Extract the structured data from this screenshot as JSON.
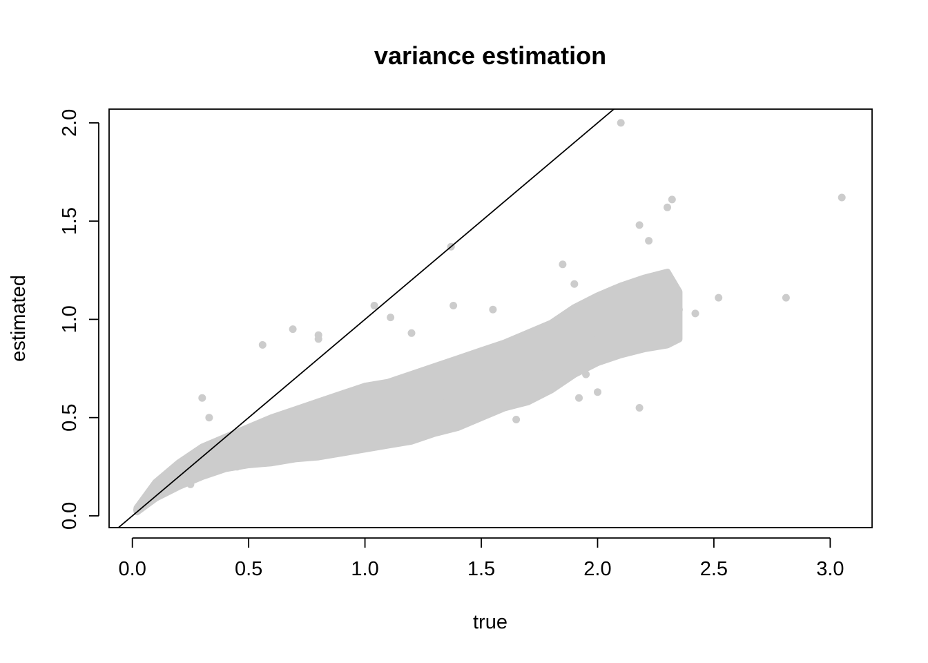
{
  "chart_data": {
    "type": "scatter",
    "title": "variance estimation",
    "xlabel": "true",
    "ylabel": "estimated",
    "xlim": [
      -0.1,
      3.18
    ],
    "ylim": [
      -0.06,
      2.07
    ],
    "xticks": [
      0.0,
      0.5,
      1.0,
      1.5,
      2.0,
      2.5,
      3.0
    ],
    "xtick_labels": [
      "0.0",
      "0.5",
      "1.0",
      "1.5",
      "2.0",
      "2.5",
      "3.0"
    ],
    "yticks": [
      0.0,
      0.5,
      1.0,
      1.5,
      2.0
    ],
    "ytick_labels": [
      "0.0",
      "0.5",
      "1.0",
      "1.5",
      "2.0"
    ],
    "grid": false,
    "reference_line": {
      "intercept": 0,
      "slope": 1,
      "color": "#000000"
    },
    "point_color": "#cccccc",
    "points": {
      "x": [
        0.02,
        0.05,
        0.08,
        0.1,
        0.12,
        0.15,
        0.18,
        0.2,
        0.22,
        0.25,
        0.28,
        0.3,
        0.33,
        0.36,
        0.4,
        0.43,
        0.46,
        0.5,
        0.54,
        0.58,
        0.62,
        0.66,
        0.7,
        0.75,
        0.8,
        0.85,
        0.9,
        0.95,
        1.0,
        1.05,
        1.1,
        1.15,
        1.2,
        1.25,
        1.3,
        1.35,
        1.4,
        1.45,
        1.5,
        1.55,
        1.6,
        1.65,
        1.7,
        1.75,
        1.8,
        1.85,
        1.9,
        1.95,
        2.0,
        2.05,
        2.1,
        2.15,
        2.2,
        2.25,
        2.3,
        2.35,
        0.3,
        0.33,
        0.56,
        0.69,
        0.8,
        0.8,
        1.04,
        1.37,
        1.38,
        1.11,
        1.2,
        1.55,
        1.85,
        1.9,
        2.1,
        2.18,
        2.22,
        2.3,
        2.32,
        2.42,
        2.52,
        2.81,
        3.05,
        2.18,
        2.0,
        1.92,
        1.65,
        0.85,
        0.6,
        1.0,
        1.25,
        0.25,
        0.45,
        0.5,
        0.72,
        0.95,
        1.3,
        1.5,
        1.7,
        1.95,
        2.15,
        2.28
      ],
      "y": [
        0.03,
        0.06,
        0.09,
        0.11,
        0.14,
        0.16,
        0.19,
        0.2,
        0.22,
        0.24,
        0.26,
        0.28,
        0.29,
        0.31,
        0.32,
        0.34,
        0.35,
        0.36,
        0.37,
        0.38,
        0.39,
        0.4,
        0.41,
        0.42,
        0.43,
        0.44,
        0.45,
        0.46,
        0.47,
        0.48,
        0.49,
        0.51,
        0.52,
        0.54,
        0.56,
        0.58,
        0.6,
        0.62,
        0.64,
        0.66,
        0.68,
        0.7,
        0.72,
        0.75,
        0.78,
        0.81,
        0.84,
        0.87,
        0.9,
        0.92,
        0.95,
        0.97,
        1.0,
        1.02,
        1.04,
        1.05,
        0.6,
        0.5,
        0.87,
        0.95,
        0.92,
        0.9,
        1.07,
        1.37,
        1.07,
        1.01,
        0.93,
        1.05,
        1.28,
        1.18,
        2.0,
        1.48,
        1.4,
        1.57,
        1.61,
        1.03,
        1.11,
        1.11,
        1.62,
        0.55,
        0.63,
        0.6,
        0.49,
        0.56,
        0.38,
        0.6,
        0.7,
        0.16,
        0.25,
        0.3,
        0.33,
        0.38,
        0.45,
        0.55,
        0.6,
        0.72,
        0.85,
        0.95
      ]
    },
    "cloud_bands": [
      {
        "x": 0.02,
        "lo": 0.02,
        "hi": 0.04
      },
      {
        "x": 0.1,
        "lo": 0.09,
        "hi": 0.17
      },
      {
        "x": 0.2,
        "lo": 0.15,
        "hi": 0.27
      },
      {
        "x": 0.3,
        "lo": 0.2,
        "hi": 0.35
      },
      {
        "x": 0.4,
        "lo": 0.24,
        "hi": 0.4
      },
      {
        "x": 0.5,
        "lo": 0.26,
        "hi": 0.45
      },
      {
        "x": 0.6,
        "lo": 0.27,
        "hi": 0.5
      },
      {
        "x": 0.7,
        "lo": 0.29,
        "hi": 0.54
      },
      {
        "x": 0.8,
        "lo": 0.3,
        "hi": 0.58
      },
      {
        "x": 0.9,
        "lo": 0.32,
        "hi": 0.62
      },
      {
        "x": 1.0,
        "lo": 0.34,
        "hi": 0.66
      },
      {
        "x": 1.1,
        "lo": 0.36,
        "hi": 0.68
      },
      {
        "x": 1.2,
        "lo": 0.38,
        "hi": 0.72
      },
      {
        "x": 1.3,
        "lo": 0.42,
        "hi": 0.76
      },
      {
        "x": 1.4,
        "lo": 0.45,
        "hi": 0.8
      },
      {
        "x": 1.5,
        "lo": 0.5,
        "hi": 0.84
      },
      {
        "x": 1.6,
        "lo": 0.55,
        "hi": 0.88
      },
      {
        "x": 1.7,
        "lo": 0.58,
        "hi": 0.93
      },
      {
        "x": 1.8,
        "lo": 0.64,
        "hi": 0.98
      },
      {
        "x": 1.9,
        "lo": 0.72,
        "hi": 1.06
      },
      {
        "x": 2.0,
        "lo": 0.78,
        "hi": 1.12
      },
      {
        "x": 2.1,
        "lo": 0.82,
        "hi": 1.17
      },
      {
        "x": 2.2,
        "lo": 0.85,
        "hi": 1.21
      },
      {
        "x": 2.3,
        "lo": 0.87,
        "hi": 1.24
      },
      {
        "x": 2.35,
        "lo": 0.9,
        "hi": 1.14
      }
    ]
  }
}
